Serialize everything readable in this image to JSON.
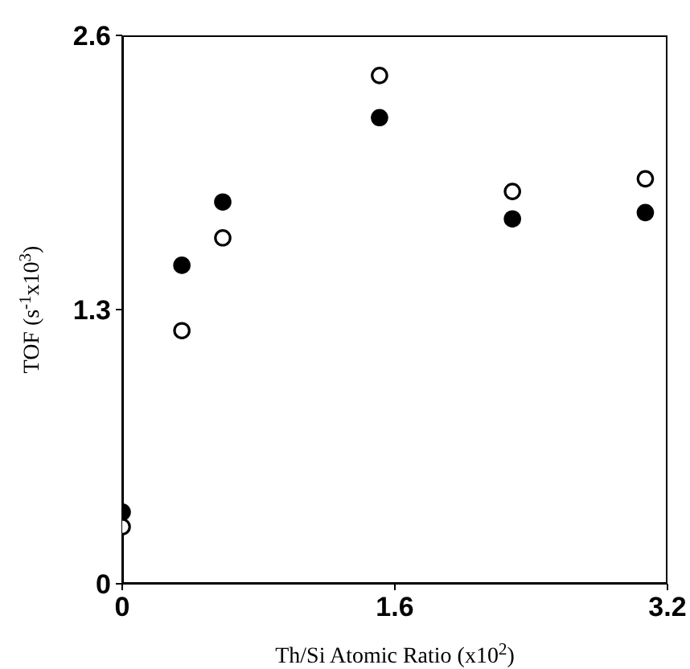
{
  "chart_data": {
    "type": "scatter",
    "xlabel": "Th/Si Atomic Ratio (x10$^{2}$)",
    "ylabel": "TOF (s$^{-1}$x10$^{3}$)",
    "xlim": [
      0,
      3.2
    ],
    "xticks": [
      0,
      1.6,
      3.2
    ],
    "ylim": [
      0,
      2.6
    ],
    "yticks": [
      0,
      1.3,
      2.6
    ],
    "grid": false,
    "legend": false,
    "marker": "circle",
    "series": [
      {
        "color": "#000000",
        "x": [
          0,
          0.35,
          0.59,
          1.51,
          2.29,
          3.07
        ],
        "values": [
          0.34,
          1.51,
          1.81,
          2.21,
          1.73,
          1.76
        ]
      },
      {
        "color": "#000000",
        "x": [
          0,
          0.35,
          0.59,
          1.51,
          2.29,
          3.07
        ],
        "values": [
          0.27,
          1.2,
          1.64,
          2.41,
          1.86,
          1.92
        ]
      }
    ]
  }
}
